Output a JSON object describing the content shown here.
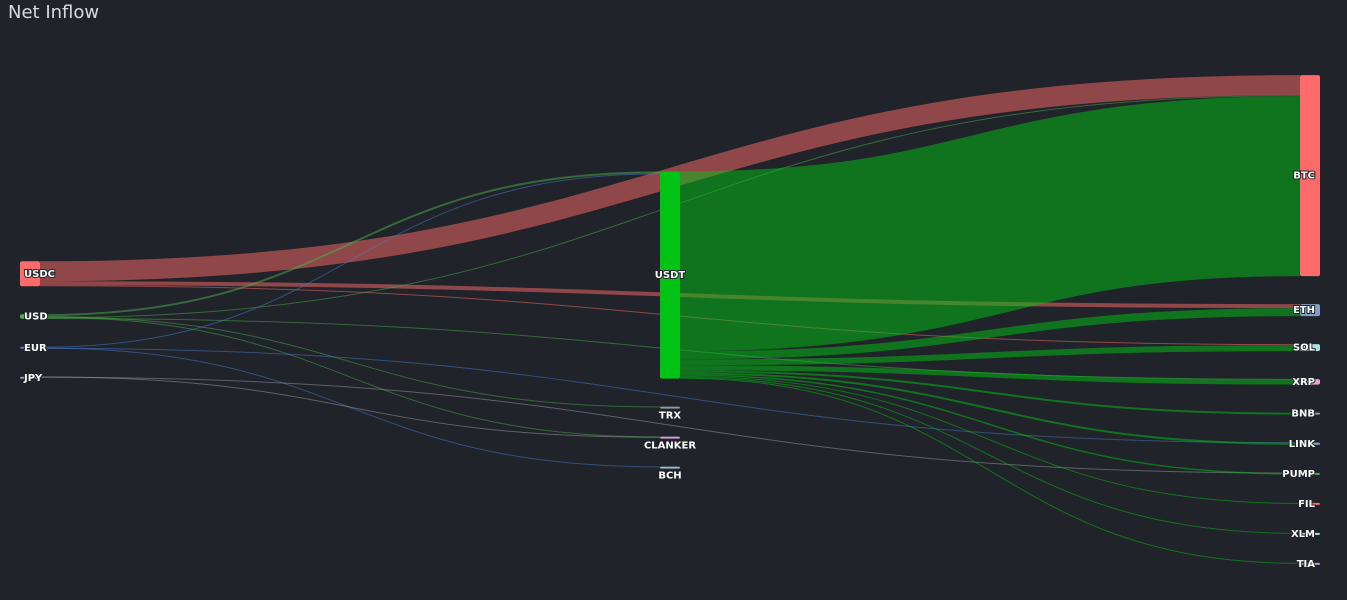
{
  "chart_data": {
    "type": "sankey",
    "title": "Net Inflow",
    "nodes": [
      {
        "name": "USDC",
        "color": "#ff6b6b"
      },
      {
        "name": "USD",
        "color": "#4caf50"
      },
      {
        "name": "EUR",
        "color": "#4a7bd0"
      },
      {
        "name": "JPY",
        "color": "#9aa0a8"
      },
      {
        "name": "USDT",
        "color": "#00c313"
      },
      {
        "name": "TRX",
        "color": "#8f97a3"
      },
      {
        "name": "CLANKER",
        "color": "#c9a0dc"
      },
      {
        "name": "BCH",
        "color": "#8fb8c8"
      },
      {
        "name": "BTC",
        "color": "#ff6b6b"
      },
      {
        "name": "ETH",
        "color": "#7f9fc8"
      },
      {
        "name": "SOL",
        "color": "#b0e0e6"
      },
      {
        "name": "XRP",
        "color": "#f0a0d8"
      },
      {
        "name": "BNB",
        "color": "#9aa0a8"
      },
      {
        "name": "LINK",
        "color": "#7f9fc8"
      },
      {
        "name": "PUMP",
        "color": "#4caf50"
      },
      {
        "name": "FIL",
        "color": "#ff6b6b"
      },
      {
        "name": "XLM",
        "color": "#b0e0e6"
      },
      {
        "name": "TIA",
        "color": "#c9a0dc"
      }
    ],
    "links": [
      {
        "source": "USDC",
        "target": "BTC",
        "value": 20
      },
      {
        "source": "USDC",
        "target": "ETH",
        "value": 4
      },
      {
        "source": "USDC",
        "target": "SOL",
        "value": 1
      },
      {
        "source": "USD",
        "target": "USDT",
        "value": 2
      },
      {
        "source": "USD",
        "target": "TRX",
        "value": 0.5
      },
      {
        "source": "USD",
        "target": "CLANKER",
        "value": 0.5
      },
      {
        "source": "USD",
        "target": "BTC",
        "value": 1
      },
      {
        "source": "USD",
        "target": "XRP",
        "value": 0.5
      },
      {
        "source": "EUR",
        "target": "USDT",
        "value": 1
      },
      {
        "source": "EUR",
        "target": "BCH",
        "value": 0.4
      },
      {
        "source": "EUR",
        "target": "LINK",
        "value": 0.3
      },
      {
        "source": "JPY",
        "target": "CLANKER",
        "value": 0.3
      },
      {
        "source": "JPY",
        "target": "PUMP",
        "value": 0.3
      },
      {
        "source": "USDT",
        "target": "BTC",
        "value": 180
      },
      {
        "source": "USDT",
        "target": "ETH",
        "value": 8
      },
      {
        "source": "USDT",
        "target": "SOL",
        "value": 6
      },
      {
        "source": "USDT",
        "target": "XRP",
        "value": 5
      },
      {
        "source": "USDT",
        "target": "BNB",
        "value": 2
      },
      {
        "source": "USDT",
        "target": "LINK",
        "value": 2
      },
      {
        "source": "USDT",
        "target": "PUMP",
        "value": 1.5
      },
      {
        "source": "USDT",
        "target": "FIL",
        "value": 1
      },
      {
        "source": "USDT",
        "target": "XLM",
        "value": 1
      },
      {
        "source": "USDT",
        "target": "TIA",
        "value": 0.8
      }
    ]
  }
}
